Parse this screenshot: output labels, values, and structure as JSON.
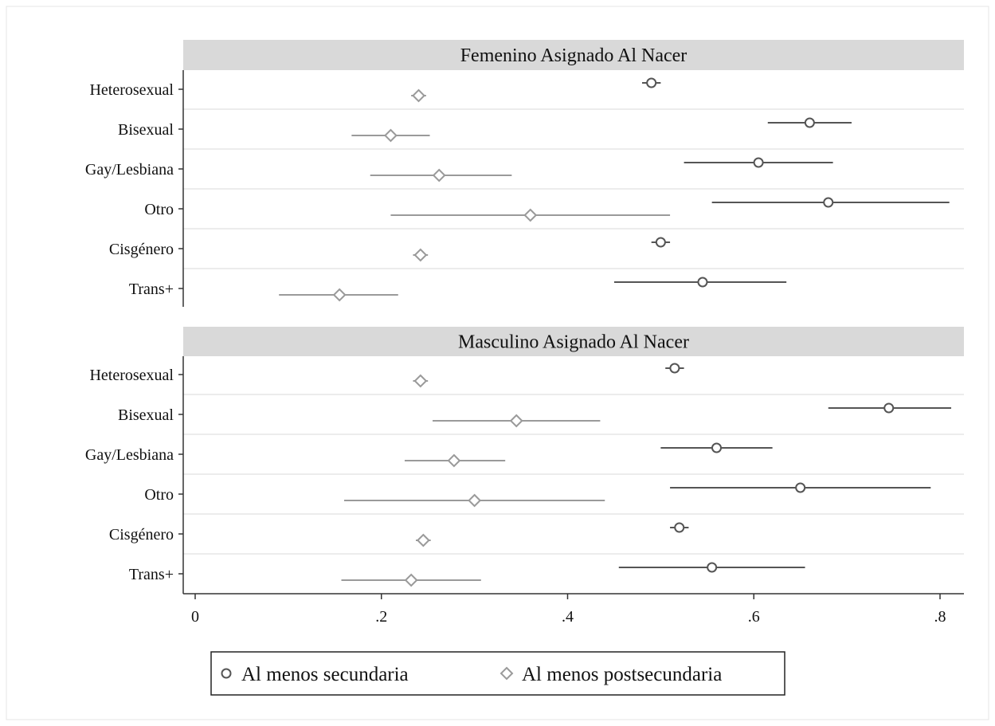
{
  "chart_data": {
    "type": "scatter",
    "subtype": "coefficient-plot-with-confidence-intervals",
    "categories": [
      "Heterosexual",
      "Bisexual",
      "Gay/Lesbiana",
      "Otro",
      "Cisgénero",
      "Trans+"
    ],
    "xlim": [
      0,
      0.83
    ],
    "xticks": [
      {
        "value": 0,
        "label": "0"
      },
      {
        "value": 0.2,
        "label": ".2"
      },
      {
        "value": 0.4,
        "label": ".4"
      },
      {
        "value": 0.6,
        "label": ".6"
      },
      {
        "value": 0.8,
        "label": ".8"
      }
    ],
    "grid": true,
    "legend_position": "bottom",
    "legend": [
      {
        "key": "secundaria",
        "label": "Al menos secundaria",
        "marker": "circle",
        "color": "#555555"
      },
      {
        "key": "postsecundaria",
        "label": "Al menos postsecundaria",
        "marker": "diamond",
        "color": "#9a9a9a"
      }
    ],
    "panels": [
      {
        "title": "Femenino Asignado Al Nacer",
        "series": {
          "secundaria": [
            {
              "value": 0.49,
              "lo": 0.48,
              "hi": 0.5
            },
            {
              "value": 0.66,
              "lo": 0.615,
              "hi": 0.705
            },
            {
              "value": 0.605,
              "lo": 0.525,
              "hi": 0.685
            },
            {
              "value": 0.68,
              "lo": 0.555,
              "hi": 0.81
            },
            {
              "value": 0.5,
              "lo": 0.49,
              "hi": 0.51
            },
            {
              "value": 0.545,
              "lo": 0.45,
              "hi": 0.635
            }
          ],
          "postsecundaria": [
            {
              "value": 0.24,
              "lo": 0.232,
              "hi": 0.248
            },
            {
              "value": 0.21,
              "lo": 0.168,
              "hi": 0.252
            },
            {
              "value": 0.262,
              "lo": 0.188,
              "hi": 0.34
            },
            {
              "value": 0.36,
              "lo": 0.21,
              "hi": 0.51
            },
            {
              "value": 0.242,
              "lo": 0.234,
              "hi": 0.25
            },
            {
              "value": 0.155,
              "lo": 0.09,
              "hi": 0.218
            }
          ]
        }
      },
      {
        "title": "Masculino Asignado Al Nacer",
        "series": {
          "secundaria": [
            {
              "value": 0.515,
              "lo": 0.505,
              "hi": 0.525
            },
            {
              "value": 0.745,
              "lo": 0.68,
              "hi": 0.812
            },
            {
              "value": 0.56,
              "lo": 0.5,
              "hi": 0.62
            },
            {
              "value": 0.65,
              "lo": 0.51,
              "hi": 0.79
            },
            {
              "value": 0.52,
              "lo": 0.51,
              "hi": 0.53
            },
            {
              "value": 0.555,
              "lo": 0.455,
              "hi": 0.655
            }
          ],
          "postsecundaria": [
            {
              "value": 0.242,
              "lo": 0.234,
              "hi": 0.25
            },
            {
              "value": 0.345,
              "lo": 0.255,
              "hi": 0.435
            },
            {
              "value": 0.278,
              "lo": 0.225,
              "hi": 0.333
            },
            {
              "value": 0.3,
              "lo": 0.16,
              "hi": 0.44
            },
            {
              "value": 0.245,
              "lo": 0.237,
              "hi": 0.253
            },
            {
              "value": 0.232,
              "lo": 0.157,
              "hi": 0.307
            }
          ]
        }
      }
    ]
  }
}
